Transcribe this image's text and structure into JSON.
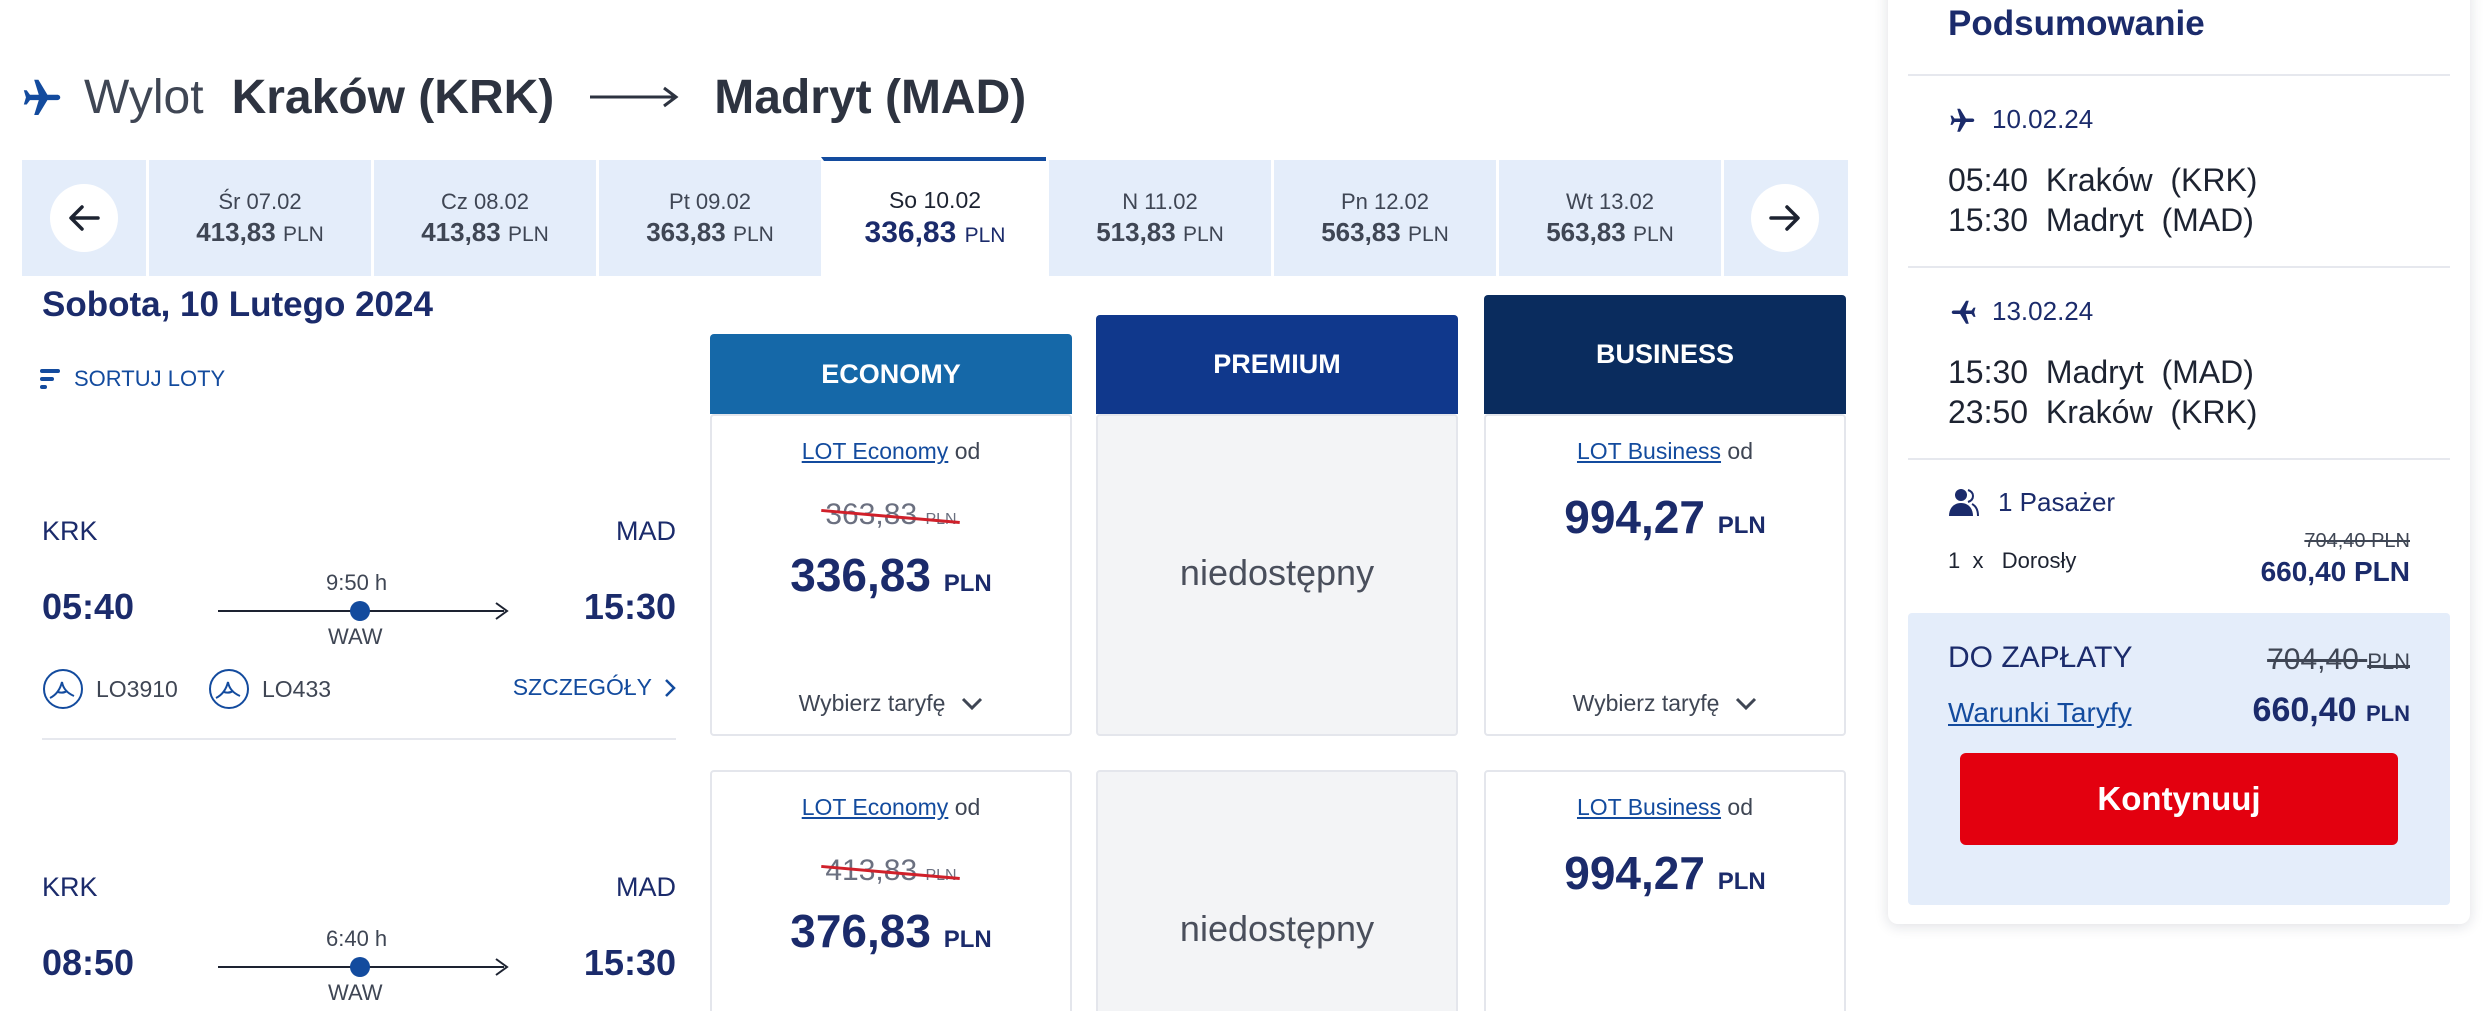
{
  "header": {
    "wylot": "Wylot",
    "origin": "Kraków (KRK)",
    "destination": "Madryt (MAD)"
  },
  "date_strip": [
    {
      "day": "Śr 07.02",
      "amount": "413,83",
      "currency": "PLN"
    },
    {
      "day": "Cz 08.02",
      "amount": "413,83",
      "currency": "PLN"
    },
    {
      "day": "Pt 09.02",
      "amount": "363,83",
      "currency": "PLN"
    },
    {
      "day": "So 10.02",
      "amount": "336,83",
      "currency": "PLN",
      "selected": true
    },
    {
      "day": "N 11.02",
      "amount": "513,83",
      "currency": "PLN"
    },
    {
      "day": "Pn 12.02",
      "amount": "563,83",
      "currency": "PLN"
    },
    {
      "day": "Wt 13.02",
      "amount": "563,83",
      "currency": "PLN"
    }
  ],
  "day_title": "Sobota, 10 Lutego 2024",
  "sort_label": "SORTUJ LOTY",
  "fare_headers": {
    "economy": "ECONOMY",
    "premium": "PREMIUM",
    "business": "BUSINESS"
  },
  "colors": {
    "economy": "#1568a8",
    "premium": "#10388c",
    "business": "#0a2c5e",
    "continue": "#e3000f"
  },
  "flights": [
    {
      "from": "KRK",
      "to": "MAD",
      "dep": "05:40",
      "arr": "15:30",
      "duration": "9:50 h",
      "via": "WAW",
      "flight_numbers": [
        "LO3910",
        "LO433"
      ],
      "details": "SZCZEGÓŁY",
      "economy": {
        "brand": "LOT Economy",
        "od": "od",
        "old": "363,83",
        "price": "336,83",
        "currency": "PLN",
        "choose": "Wybierz taryfę"
      },
      "premium": {
        "status": "niedostępny"
      },
      "business": {
        "brand": "LOT Business",
        "od": "od",
        "price": "994,27",
        "currency": "PLN",
        "choose": "Wybierz taryfę"
      }
    },
    {
      "from": "KRK",
      "to": "MAD",
      "dep": "08:50",
      "arr": "15:30",
      "duration": "6:40 h",
      "via": "WAW",
      "economy": {
        "brand": "LOT Economy",
        "od": "od",
        "old": "413,83",
        "price": "376,83",
        "currency": "PLN"
      },
      "premium": {
        "status": "niedostępny"
      },
      "business": {
        "brand": "LOT Business",
        "od": "od",
        "price": "994,27",
        "currency": "PLN"
      }
    }
  ],
  "summary": {
    "title": "Podsumowanie",
    "outbound": {
      "date": "10.02.24",
      "dep_time": "05:40",
      "dep_city": "Kraków  (KRK)",
      "arr_time": "15:30",
      "arr_city": "Madryt  (MAD)"
    },
    "inbound": {
      "date": "13.02.24",
      "dep_time": "15:30",
      "dep_city": "Madryt  (MAD)",
      "arr_time": "23:50",
      "arr_city": "Kraków  (KRK)"
    },
    "passengers": "1 Pasażer",
    "pax_row": "1  x   Dorosły",
    "pax_old": "704,40 PLN",
    "pax_new": "660,40 PLN",
    "pay_label": "DO ZAPŁATY",
    "pay_old": "704,40",
    "pay_new": "660,40",
    "currency": "PLN",
    "terms": "Warunki Taryfy",
    "continue": "Kontynuuj"
  }
}
